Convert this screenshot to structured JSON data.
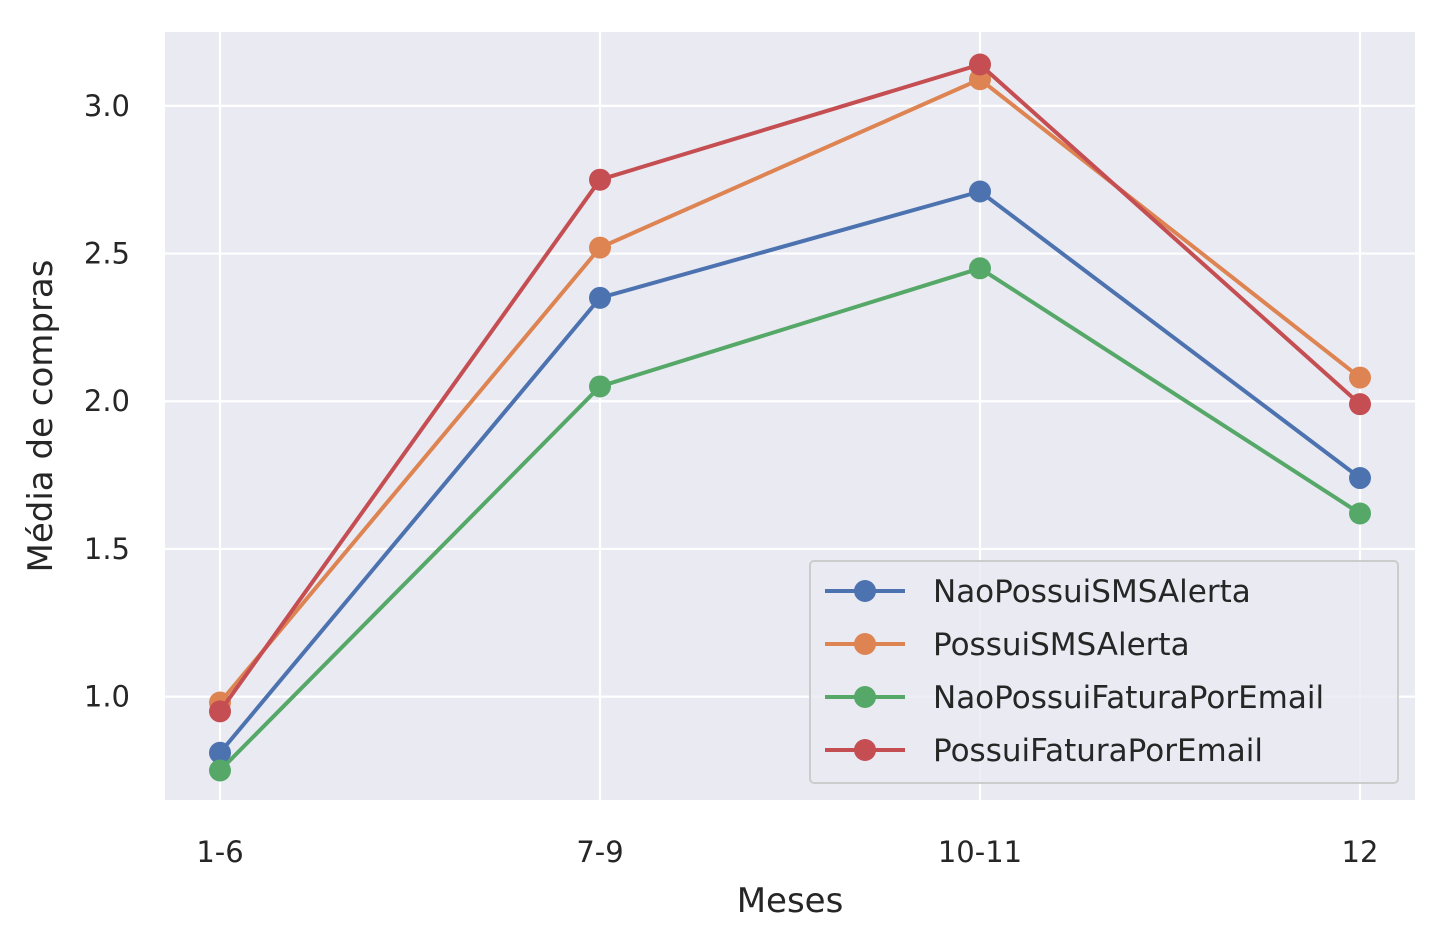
{
  "chart_data": {
    "type": "line",
    "title": "",
    "xlabel": "Meses",
    "ylabel": "Média de compras",
    "categories": [
      "1-6",
      "7-9",
      "10-11",
      "12"
    ],
    "ylim": [
      0.65,
      3.25
    ],
    "yticks": [
      1.0,
      1.5,
      2.0,
      2.5,
      3.0
    ],
    "ytick_labels": [
      "1.0",
      "1.5",
      "2.0",
      "2.5",
      "3.0"
    ],
    "grid": true,
    "legend_position": "lower-right",
    "series": [
      {
        "name": "NaoPossuiSMSAlerta",
        "color": "#4c72b0",
        "values": [
          0.81,
          2.35,
          2.71,
          1.74
        ]
      },
      {
        "name": "PossuiSMSAlerta",
        "color": "#dd8452",
        "values": [
          0.98,
          2.52,
          3.09,
          2.08
        ]
      },
      {
        "name": "NaoPossuiFaturaPorEmail",
        "color": "#55a868",
        "values": [
          0.75,
          2.05,
          2.45,
          1.62
        ]
      },
      {
        "name": "PossuiFaturaPorEmail",
        "color": "#c44e52",
        "values": [
          0.95,
          2.75,
          3.14,
          1.99
        ]
      }
    ]
  }
}
